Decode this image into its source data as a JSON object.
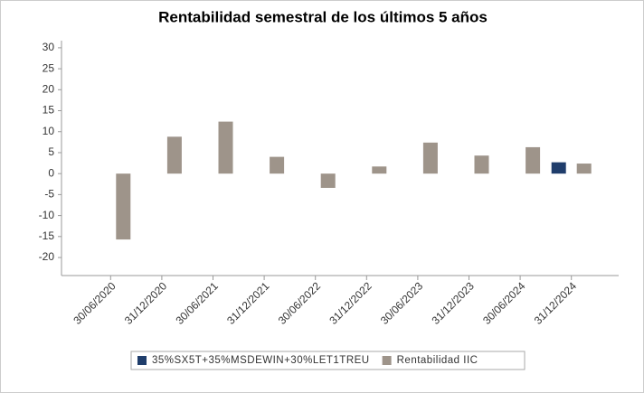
{
  "chart_data": {
    "type": "bar",
    "title": "Rentabilidad semestral de los últimos 5 años",
    "categories": [
      "30/06/2020",
      "31/12/2020",
      "30/06/2021",
      "31/12/2021",
      "30/06/2022",
      "31/12/2022",
      "30/06/2023",
      "31/12/2023",
      "30/06/2024",
      "31/12/2024"
    ],
    "series": [
      {
        "name": "35%SX5T+35%MSDEWIN+30%LET1TREU",
        "color": "#1f3d6b",
        "values": [
          null,
          null,
          null,
          null,
          null,
          null,
          null,
          null,
          null,
          2.7
        ]
      },
      {
        "name": "Rentabilidad IIC",
        "color": "#9e948a",
        "values": [
          -15.7,
          8.8,
          12.4,
          4.0,
          -3.4,
          1.7,
          7.4,
          4.3,
          6.3,
          2.4
        ]
      }
    ],
    "ylim": [
      -24.3,
      31.7
    ],
    "yticks": [
      -20,
      -15,
      -10,
      -5,
      0,
      5,
      10,
      15,
      20,
      25,
      30
    ],
    "grid": false,
    "legend": "bottom"
  }
}
